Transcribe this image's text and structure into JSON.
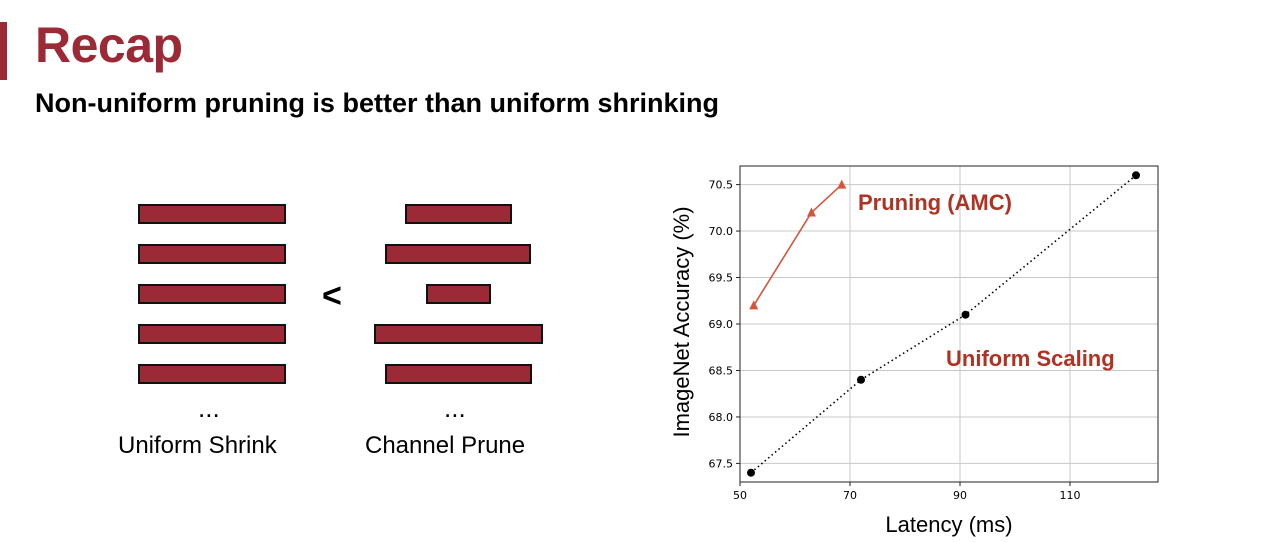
{
  "slide": {
    "title": "Recap",
    "subtitle": "Non-uniform pruning is better than uniform shrinking",
    "comparison_symbol": "<",
    "ellipsis": "...",
    "left_caption": "Uniform Shrink",
    "right_caption": "Channel Prune",
    "accent_color": "#9c2a36"
  },
  "chart_data": {
    "type": "line",
    "xlabel": "Latency (ms)",
    "ylabel": "ImageNet Accuracy (%)",
    "xlim": [
      50,
      126
    ],
    "ylim": [
      67.3,
      70.7
    ],
    "xticks": [
      50,
      70,
      90,
      110
    ],
    "yticks": [
      67.5,
      68.0,
      68.5,
      69.0,
      69.5,
      70.0,
      70.5
    ],
    "grid": true,
    "series": [
      {
        "name": "Pruning (AMC)",
        "color": "#d9533a",
        "label_color": "#b03222",
        "marker": "triangle",
        "line": "solid",
        "x": [
          52.5,
          63.0,
          68.5
        ],
        "y": [
          69.2,
          70.2,
          70.5
        ]
      },
      {
        "name": "Uniform Scaling",
        "color": "#000000",
        "label_color": "#b03222",
        "marker": "circle",
        "line": "dotted",
        "x": [
          52.0,
          72.0,
          91.0,
          122.0
        ],
        "y": [
          67.4,
          68.4,
          69.1,
          70.6
        ]
      }
    ]
  }
}
